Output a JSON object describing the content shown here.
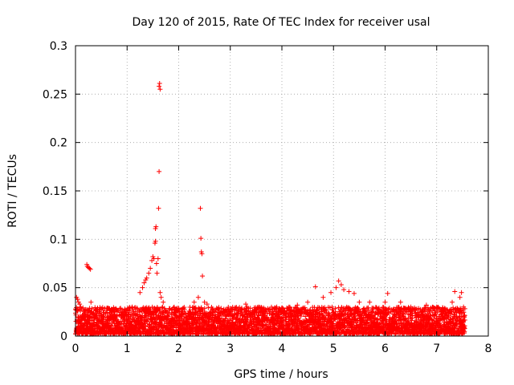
{
  "chart_data": {
    "type": "scatter",
    "title": "Day 120 of 2015, Rate Of TEC Index for receiver usal",
    "xlabel": "GPS time / hours",
    "ylabel": "ROTI / TECUs",
    "xlim": [
      0,
      8
    ],
    "ylim": [
      0,
      0.3
    ],
    "xticks": [
      0,
      1,
      2,
      3,
      4,
      5,
      6,
      7,
      8
    ],
    "xtick_labels": [
      "0",
      "1",
      "2",
      "3",
      "4",
      "5",
      "6",
      "7",
      "8"
    ],
    "yticks": [
      0,
      0.05,
      0.1,
      0.15,
      0.2,
      0.25,
      0.3
    ],
    "ytick_labels": [
      "0",
      "0.05",
      "0.1",
      "0.15",
      "0.2",
      "0.25",
      "0.3"
    ],
    "grid": true,
    "marker": "+",
    "marker_color": "#ff0000",
    "dense_band": {
      "x_range": [
        0,
        7.55
      ],
      "y_range": [
        0.002,
        0.03
      ],
      "description": "continuous band of ROTI values"
    },
    "series": [
      {
        "name": "ROTI",
        "points": [
          [
            0.02,
            0.04
          ],
          [
            0.04,
            0.038
          ],
          [
            0.06,
            0.035
          ],
          [
            0.08,
            0.033
          ],
          [
            0.1,
            0.03
          ],
          [
            0.12,
            0.028
          ],
          [
            0.22,
            0.074
          ],
          [
            0.23,
            0.072
          ],
          [
            0.25,
            0.071
          ],
          [
            0.27,
            0.07
          ],
          [
            0.29,
            0.069
          ],
          [
            0.3,
            0.035
          ],
          [
            0.5,
            0.028
          ],
          [
            0.7,
            0.025
          ],
          [
            0.9,
            0.027
          ],
          [
            1.1,
            0.03
          ],
          [
            1.25,
            0.045
          ],
          [
            1.3,
            0.05
          ],
          [
            1.33,
            0.055
          ],
          [
            1.36,
            0.058
          ],
          [
            1.38,
            0.06
          ],
          [
            1.42,
            0.065
          ],
          [
            1.45,
            0.07
          ],
          [
            1.48,
            0.078
          ],
          [
            1.5,
            0.082
          ],
          [
            1.52,
            0.08
          ],
          [
            1.54,
            0.096
          ],
          [
            1.55,
            0.098
          ],
          [
            1.55,
            0.111
          ],
          [
            1.56,
            0.113
          ],
          [
            1.57,
            0.075
          ],
          [
            1.58,
            0.065
          ],
          [
            1.6,
            0.08
          ],
          [
            1.61,
            0.132
          ],
          [
            1.62,
            0.17
          ],
          [
            1.62,
            0.258
          ],
          [
            1.63,
            0.261
          ],
          [
            1.64,
            0.255
          ],
          [
            1.64,
            0.045
          ],
          [
            1.66,
            0.04
          ],
          [
            1.7,
            0.035
          ],
          [
            2.3,
            0.035
          ],
          [
            2.38,
            0.04
          ],
          [
            2.42,
            0.132
          ],
          [
            2.43,
            0.101
          ],
          [
            2.44,
            0.087
          ],
          [
            2.45,
            0.085
          ],
          [
            2.46,
            0.062
          ],
          [
            2.5,
            0.035
          ],
          [
            2.55,
            0.033
          ],
          [
            3.3,
            0.033
          ],
          [
            3.55,
            0.03
          ],
          [
            3.9,
            0.03
          ],
          [
            4.3,
            0.032
          ],
          [
            4.5,
            0.035
          ],
          [
            4.65,
            0.051
          ],
          [
            4.8,
            0.04
          ],
          [
            4.95,
            0.045
          ],
          [
            5.05,
            0.05
          ],
          [
            5.1,
            0.057
          ],
          [
            5.15,
            0.053
          ],
          [
            5.2,
            0.048
          ],
          [
            5.3,
            0.046
          ],
          [
            5.4,
            0.044
          ],
          [
            5.5,
            0.035
          ],
          [
            5.7,
            0.035
          ],
          [
            6.0,
            0.035
          ],
          [
            6.05,
            0.044
          ],
          [
            6.3,
            0.035
          ],
          [
            6.5,
            0.03
          ],
          [
            6.8,
            0.032
          ],
          [
            7.0,
            0.03
          ],
          [
            7.3,
            0.035
          ],
          [
            7.35,
            0.046
          ],
          [
            7.45,
            0.04
          ],
          [
            7.48,
            0.045
          ],
          [
            7.52,
            0.03
          ]
        ]
      }
    ]
  }
}
